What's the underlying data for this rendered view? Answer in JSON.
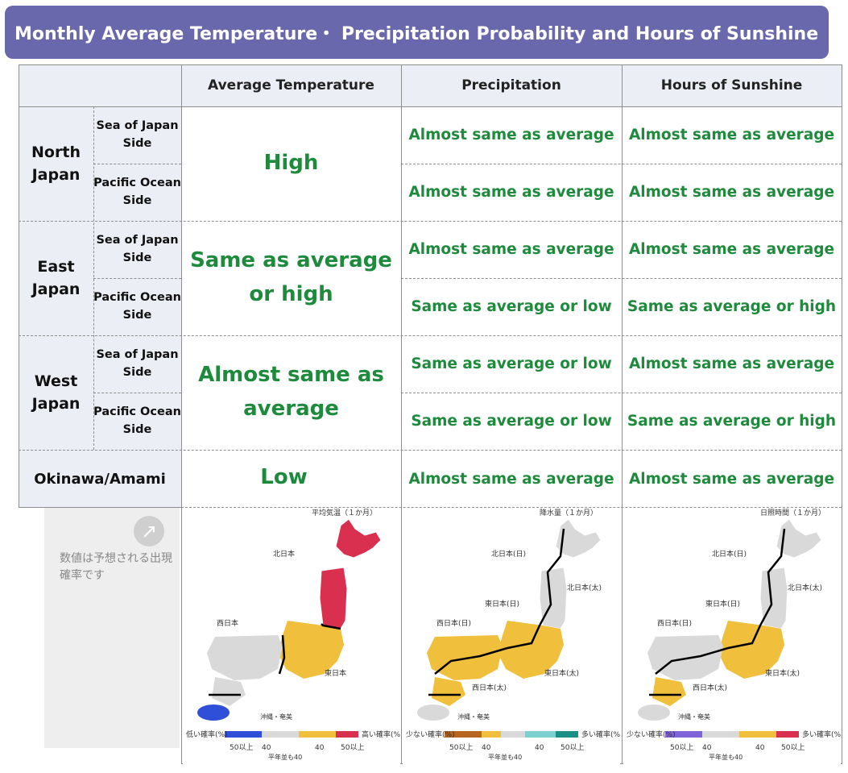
{
  "title": "Monthly Average Temperature・ Precipitation Probability and Hours of Sunshine",
  "headers": {
    "temperature": "Average Temperature",
    "precipitation": "Precipitation",
    "sunshine": "Hours of Sunshine"
  },
  "regions": {
    "north": "North Japan",
    "east": "East Japan",
    "west": "West Japan",
    "okinawa": "Okinawa/Amami"
  },
  "sides": {
    "sea": "Sea of Japan Side",
    "pacific": "Pacific Ocean Side"
  },
  "temperature": {
    "north": "High",
    "east": "Same as average or high",
    "west": "Almost same as average",
    "okinawa": "Low"
  },
  "precipitation": {
    "north_sea": "Almost same as average",
    "north_pacific": "Almost same as average",
    "east_sea": "Almost same as average",
    "east_pacific": "Same as average or low",
    "west_sea": "Same as average or low",
    "west_pacific": "Same as average or low",
    "okinawa": "Almost same as average"
  },
  "sunshine": {
    "north_sea": "Almost same as average",
    "north_pacific": "Almost same as average",
    "east_sea": "Almost same as average",
    "east_pacific": "Same as average or high",
    "west_sea": "Almost same as average",
    "west_pacific": "Same as average or high",
    "okinawa": "Almost same as average"
  },
  "note": "数値は予想される出現確率です",
  "maps": {
    "temperature": {
      "label": "平均気温（１か月）",
      "north": "北日本",
      "east": "東日本",
      "west": "西日本",
      "okinawa": "沖縄・奄美",
      "legend_low": "低い確率(%)",
      "legend_high": "高い確率(%)",
      "legend_nums": [
        "50以上",
        "40",
        "40",
        "50以上"
      ],
      "legend_mid": "平年並も40"
    },
    "precipitation": {
      "label": "降水量（１か月）",
      "north_sea": "北日本(日)",
      "north_pac": "北日本(太)",
      "east_sea": "東日本(日)",
      "east_pac": "東日本(太)",
      "west_sea": "西日本(日)",
      "west_pac": "西日本(太)",
      "okinawa": "沖縄・奄美",
      "legend_low": "少ない確率(%)",
      "legend_high": "多い確率(%)",
      "legend_nums": [
        "50以上",
        "40",
        "40",
        "50以上"
      ],
      "legend_mid": "平年並も40"
    },
    "sunshine": {
      "label": "日照時間（１か月）",
      "north_sea": "北日本(日)",
      "north_pac": "北日本(太)",
      "east_sea": "東日本(日)",
      "east_pac": "東日本(太)",
      "west_sea": "西日本(日)",
      "west_pac": "西日本(太)",
      "okinawa": "沖縄・奄美",
      "legend_low": "少ない確率(%)",
      "legend_high": "多い確率(%)",
      "legend_nums": [
        "50以上",
        "40",
        "40",
        "50以上"
      ],
      "legend_mid": "平年並も40"
    }
  },
  "colors": {
    "title_bg": "#6a68ad",
    "value_text": "#1e8a3c",
    "high": "#d9304f",
    "above": "#f0bf3c",
    "normal": "#d9d9d9",
    "below": "#2f4fd8",
    "green_high": "#1a8f86"
  }
}
